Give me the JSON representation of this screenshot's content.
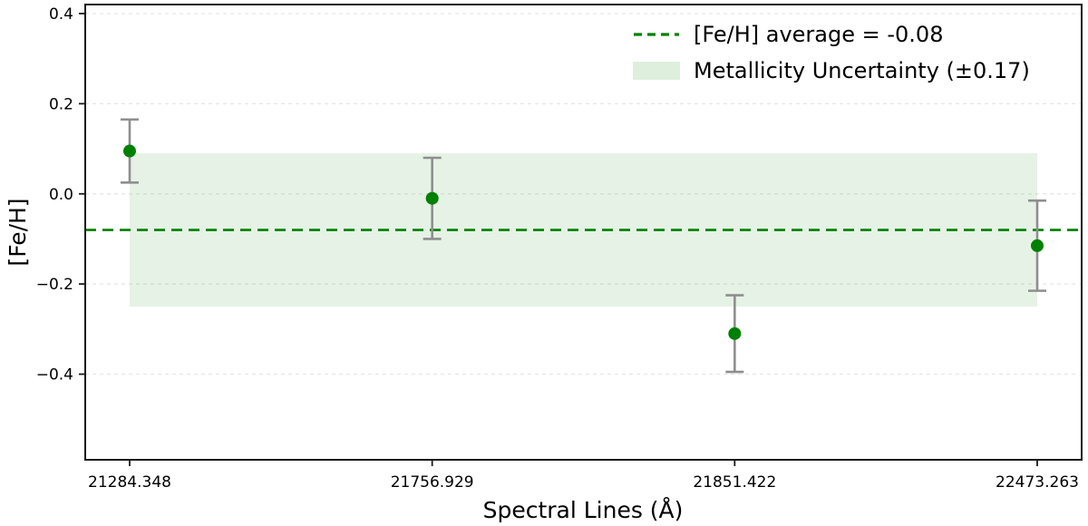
{
  "chart_data": {
    "type": "scatter",
    "title": "",
    "xlabel": "Spectral Lines (Å)",
    "ylabel": "[Fe/H]",
    "categories": [
      "21284.348",
      "21756.929",
      "21851.422",
      "22473.263"
    ],
    "values": [
      0.095,
      -0.01,
      -0.31,
      -0.115
    ],
    "errors": [
      0.07,
      0.09,
      0.085,
      0.1
    ],
    "average": -0.08,
    "uncertainty": 0.17,
    "band_low": -0.25,
    "band_high": 0.09,
    "ylim": [
      -0.59,
      0.42
    ],
    "ytick_values": [
      0.4,
      0.2,
      0.0,
      -0.2,
      -0.4
    ],
    "ytick_labels": [
      "0.4",
      "0.2",
      "0.0",
      "−0.2",
      "−0.4"
    ],
    "grid": true,
    "legend_position": "upper right",
    "legend": [
      {
        "label": "[Fe/H] average = -0.08",
        "swatch": "dashed-line"
      },
      {
        "label": "Metallicity Uncertainty (±0.17)",
        "swatch": "filled-patch"
      }
    ],
    "colors": {
      "marker": "#008000",
      "average_line": "#008000",
      "band": "rgba(0, 128, 0, 0.10)",
      "legend_patch": "rgba(0, 128, 0, 0.13)",
      "errorbar": "#8e8e8e",
      "grid": "#e5e5e5",
      "spine": "#1a1a1a",
      "text": "#000000"
    }
  }
}
